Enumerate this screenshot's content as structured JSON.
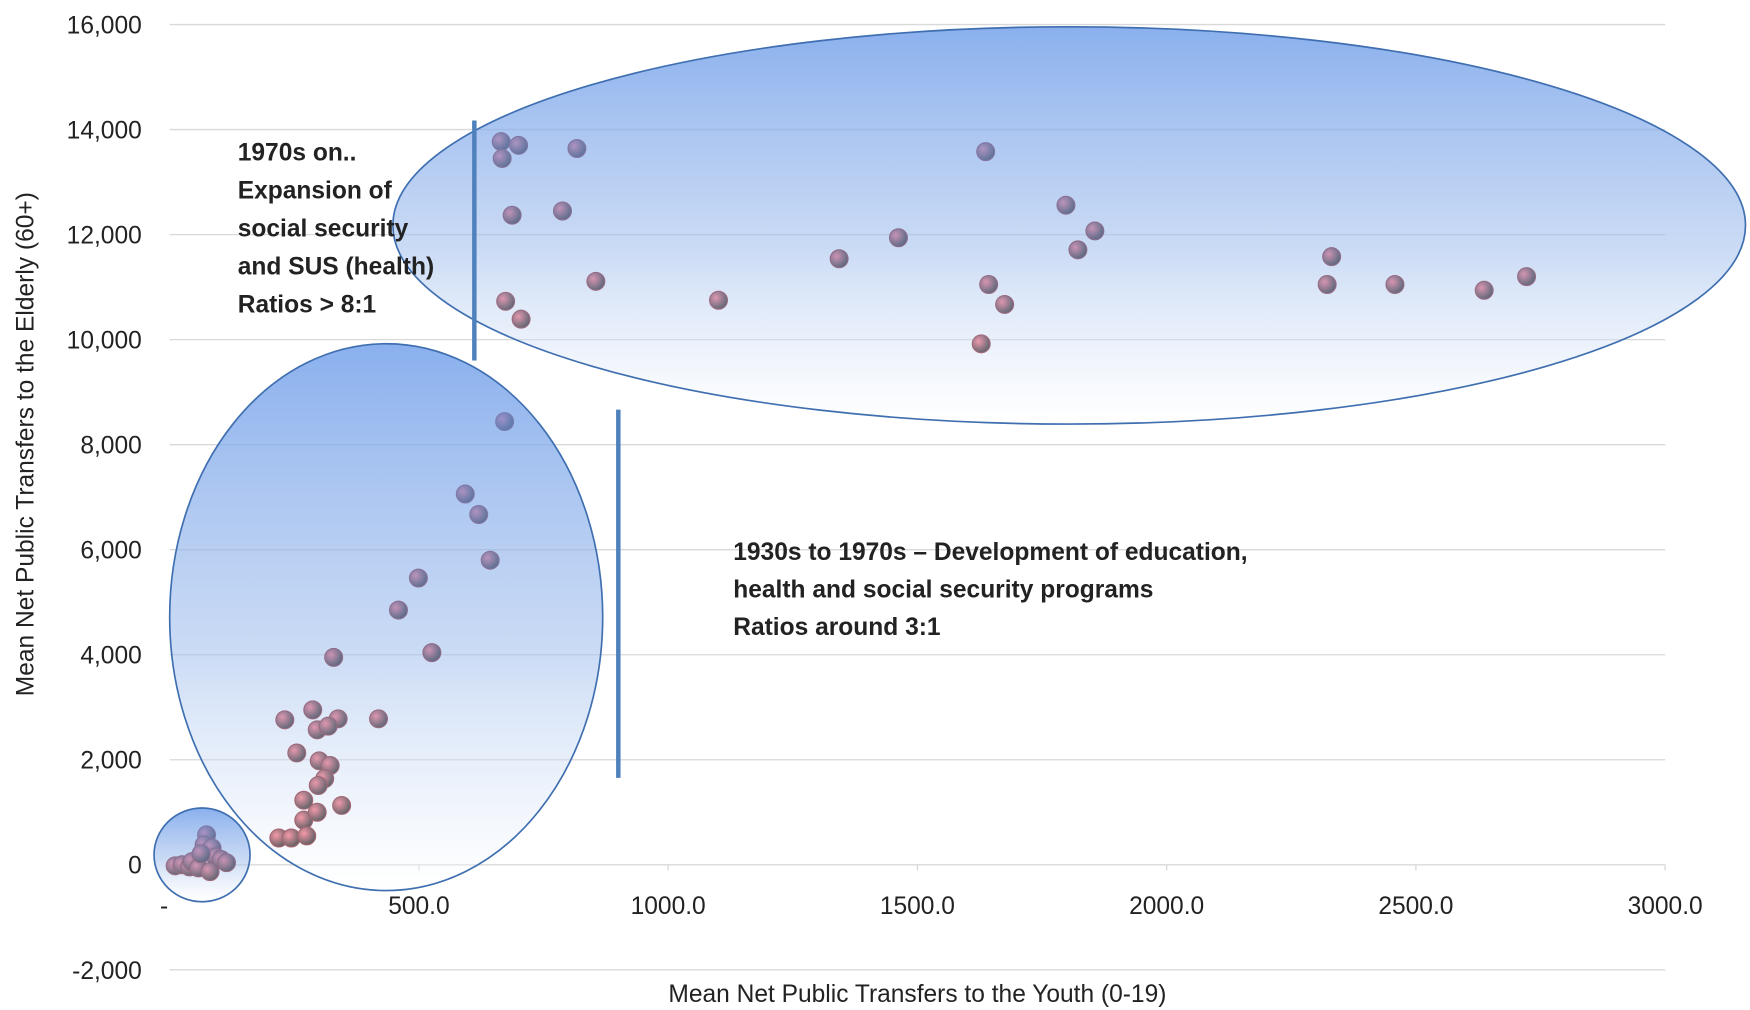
{
  "chart_data": {
    "type": "scatter",
    "xlabel": "Mean Net Public Transfers to the Youth (0-19)",
    "ylabel": "Mean Net Public Transfers to the Elderly (60+)",
    "annotations": [
      [
        "1970s on..",
        "Expansion of",
        "social security",
        "and SUS (health)",
        "Ratios > 8:1"
      ],
      [
        "1930s to 1970s – Development of education,",
        "health and social security programs",
        "Ratios around 3:1"
      ]
    ],
    "xlim": [
      0,
      3000
    ],
    "ylim": [
      -2000,
      16000
    ],
    "xticks": [
      {
        "value": 0,
        "label": "-"
      },
      {
        "value": 500,
        "label": "500.0"
      },
      {
        "value": 1000,
        "label": "1000.0"
      },
      {
        "value": 1500,
        "label": "1500.0"
      },
      {
        "value": 2000,
        "label": "2000.0"
      },
      {
        "value": 2500,
        "label": "2500.0"
      },
      {
        "value": 3000,
        "label": "3000.0"
      }
    ],
    "yticks": [
      {
        "value": -2000,
        "label": "-2,000"
      },
      0,
      {
        "value": 2000,
        "label": "2,000"
      },
      {
        "value": 4000,
        "label": "4,000"
      },
      {
        "value": 6000,
        "label": "6,000"
      },
      {
        "value": 8000,
        "label": "8,000"
      },
      {
        "value": 10000,
        "label": "10,000"
      },
      {
        "value": 12000,
        "label": "12,000"
      },
      {
        "value": 14000,
        "label": "14,000"
      },
      {
        "value": 16000,
        "label": "16,000"
      }
    ],
    "grid": true,
    "color": "#d0182a",
    "x": [
      665,
      700,
      667,
      817,
      687,
      788,
      855,
      674,
      705,
      1101,
      1343,
      1462,
      1637,
      1643,
      1675,
      1628,
      1798,
      1822,
      1856,
      2331,
      2322,
      2458,
      2637,
      2722,
      672,
      593,
      620,
      643,
      499,
      459,
      526,
      329,
      419,
      231,
      287,
      338,
      296,
      318,
      255,
      300,
      322,
      311,
      298,
      269,
      345,
      269,
      296,
      219,
      244,
      275,
      11,
      25,
      40,
      45,
      58,
      74,
      69,
      85,
      92,
      81,
      103,
      114,
      63
    ],
    "values": [
      13770,
      13700,
      13450,
      13640,
      12370,
      12450,
      11110,
      10730,
      10390,
      10750,
      11540,
      11940,
      13580,
      11050,
      10670,
      9920,
      12560,
      11710,
      12070,
      11580,
      11050,
      11050,
      10940,
      11200,
      8440,
      7060,
      6670,
      5800,
      5460,
      4850,
      4040,
      3950,
      2780,
      2760,
      2950,
      2780,
      2570,
      2640,
      2130,
      1980,
      1890,
      1640,
      1510,
      1230,
      1130,
      850,
      1000,
      510,
      510,
      550,
      -20,
      0,
      -40,
      60,
      -60,
      570,
      380,
      320,
      150,
      -130,
      100,
      40,
      210
    ]
  }
}
